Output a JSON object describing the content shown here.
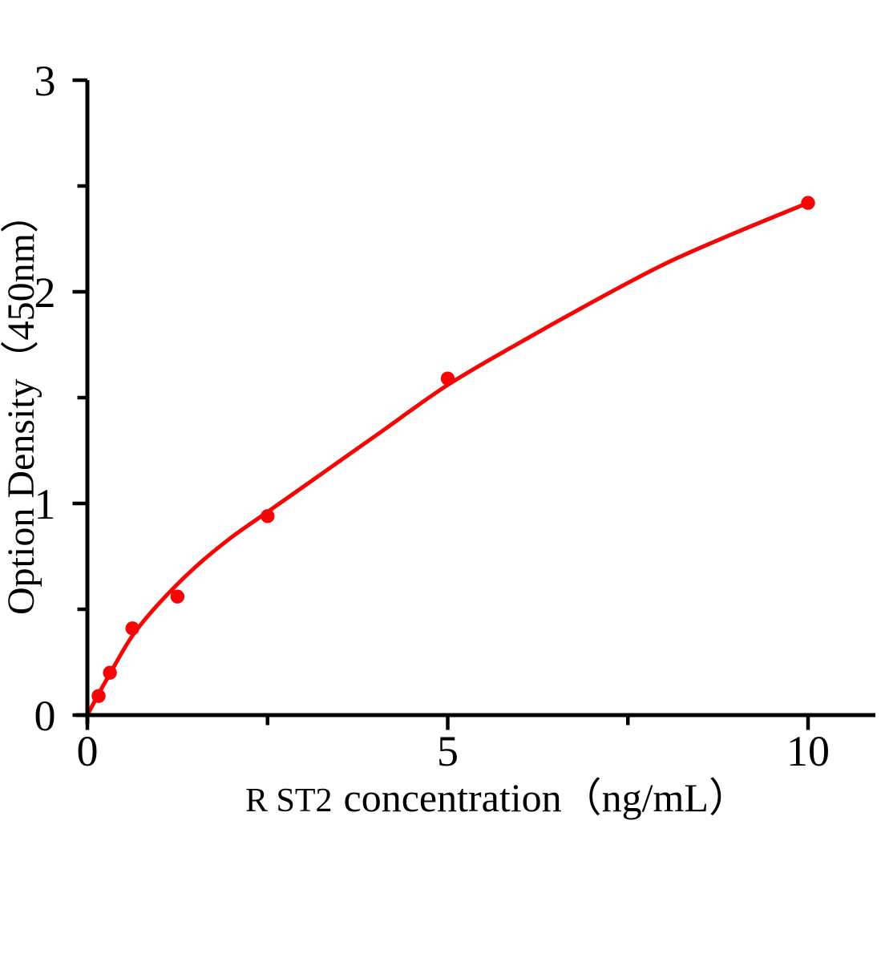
{
  "page": {
    "background": "#ffffff"
  },
  "chart_data": {
    "type": "scatter",
    "xlabel": "R ST2 concentration（ng/mL）",
    "xlabel_prefix": "R ST2",
    "xlabel_main": "concentration（ng/mL）",
    "ylabel": "Option Density（450nm）",
    "xlim": [
      0,
      10.93
    ],
    "ylim": [
      0,
      3
    ],
    "grid": false,
    "legend": "none",
    "x_major_ticks": [
      {
        "value": 0,
        "label": "0"
      },
      {
        "value": 5,
        "label": "5"
      },
      {
        "value": 10,
        "label": "10"
      }
    ],
    "x_minor_ticks": [
      2.5,
      7.5
    ],
    "y_major_ticks": [
      {
        "value": 0,
        "label": "0"
      },
      {
        "value": 1,
        "label": "1"
      },
      {
        "value": 2,
        "label": "2"
      },
      {
        "value": 3,
        "label": "3"
      }
    ],
    "y_minor_ticks": [
      0.5,
      1.5,
      2.5
    ],
    "series": [
      {
        "name": "standard-points",
        "type": "scatter",
        "marker": "circle",
        "color": "#f40606",
        "points": [
          {
            "x": 0.156,
            "y": 0.09
          },
          {
            "x": 0.3125,
            "y": 0.2
          },
          {
            "x": 0.625,
            "y": 0.41
          },
          {
            "x": 1.25,
            "y": 0.56
          },
          {
            "x": 2.5,
            "y": 0.94
          },
          {
            "x": 5,
            "y": 1.59
          },
          {
            "x": 10,
            "y": 2.42
          }
        ]
      },
      {
        "name": "fit-curve",
        "type": "line",
        "color": "#f40606",
        "points": [
          [
            0,
            0
          ],
          [
            0.156,
            0.1
          ],
          [
            0.3125,
            0.195
          ],
          [
            0.625,
            0.375
          ],
          [
            1,
            0.53
          ],
          [
            1.5,
            0.7
          ],
          [
            2,
            0.84
          ],
          [
            2.5,
            0.96
          ],
          [
            3,
            1.08
          ],
          [
            4,
            1.32
          ],
          [
            5,
            1.56
          ],
          [
            6,
            1.76
          ],
          [
            7,
            1.95
          ],
          [
            8,
            2.13
          ],
          [
            9,
            2.28
          ],
          [
            10,
            2.42
          ]
        ]
      }
    ],
    "colors": {
      "accent": "#f40606",
      "axis": "#000000",
      "text": "#000000",
      "background": "#ffffff"
    }
  }
}
